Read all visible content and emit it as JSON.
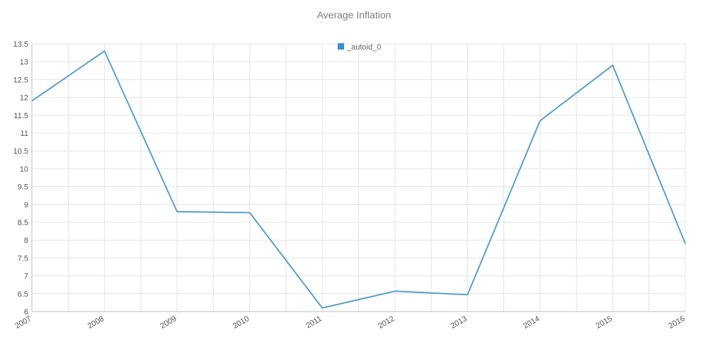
{
  "chart_data": {
    "type": "line",
    "title": "Average Inflation",
    "xlabel": "",
    "ylabel": "",
    "x": [
      "2007",
      "2008",
      "2009",
      "2010",
      "2011",
      "2012",
      "2013",
      "2014",
      "2015",
      "2016"
    ],
    "series": [
      {
        "name": "_autoid_0",
        "color": "#5aa0cc",
        "values": [
          11.9,
          13.3,
          8.8,
          8.77,
          6.1,
          6.57,
          6.47,
          11.35,
          12.9,
          7.9
        ]
      }
    ],
    "ylim": [
      6,
      13.5
    ],
    "yticks": [
      6,
      6.5,
      7,
      7.5,
      8,
      8.5,
      9,
      9.5,
      10,
      10.5,
      11,
      11.5,
      12,
      12.5,
      13,
      13.5
    ],
    "grid": true,
    "legend": "top-center",
    "legend_swatch_color": "#3a8fd0"
  }
}
